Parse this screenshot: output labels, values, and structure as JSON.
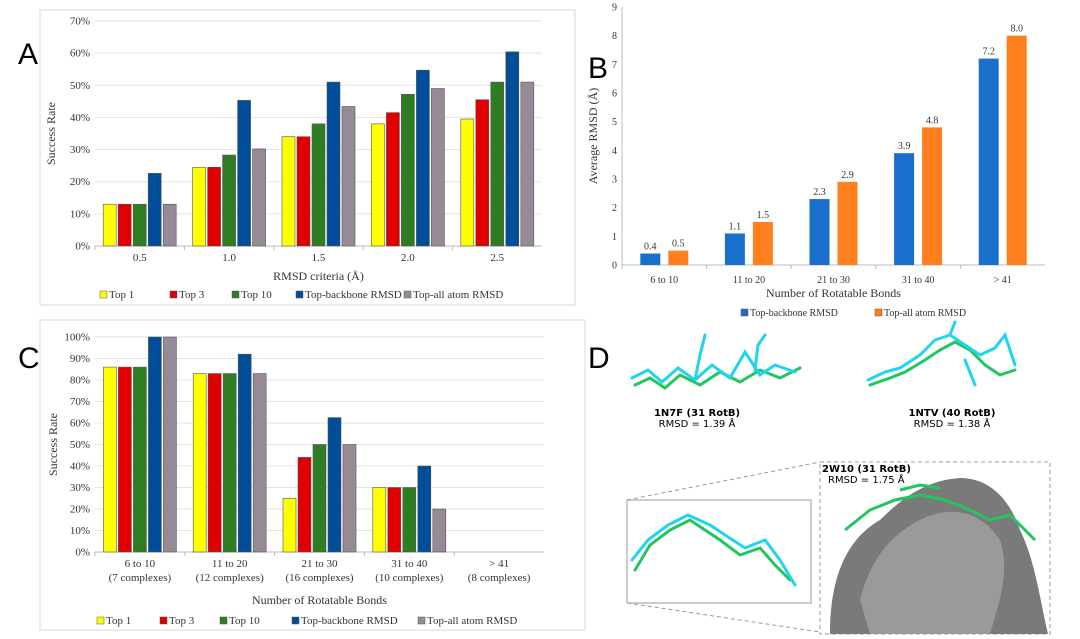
{
  "panels": {
    "a": "A",
    "b": "B",
    "c": "C",
    "d": "D"
  },
  "colors": {
    "top1": "#ffff00",
    "top3": "#e00000",
    "top10": "#2e7d23",
    "backbone": "#004d99",
    "allatom": "#968a96",
    "b_backbone": "#1a6fcc",
    "b_allatom": "#ff7f1e"
  },
  "chart_data": [
    {
      "id": "A",
      "type": "bar",
      "categories": [
        "0.5",
        "1.0",
        "1.5",
        "2.0",
        "2.5"
      ],
      "series": [
        {
          "name": "Top 1",
          "values": [
            13,
            24.5,
            34,
            38,
            39.5
          ]
        },
        {
          "name": "Top 3",
          "values": [
            13,
            24.5,
            34,
            41.5,
            45.5
          ]
        },
        {
          "name": "Top 10",
          "values": [
            13,
            28.3,
            38,
            47.2,
            51
          ]
        },
        {
          "name": "Top-backbone RMSD",
          "values": [
            22.6,
            45.3,
            51,
            54.7,
            60.4
          ]
        },
        {
          "name": "Top-all atom RMSD",
          "values": [
            13,
            30.2,
            43.4,
            49,
            51
          ]
        }
      ],
      "xlabel": "RMSD criteria (Å)",
      "ylabel": "Success Rate",
      "ylim": [
        0,
        70
      ],
      "yticks": [
        "0%",
        "10%",
        "20%",
        "30%",
        "40%",
        "50%",
        "60%",
        "70%"
      ],
      "grid": true,
      "legend": "bottom"
    },
    {
      "id": "B",
      "type": "bar",
      "categories": [
        "6 to 10",
        "11 to 20",
        "21 to 30",
        "31 to 40",
        "> 41"
      ],
      "series": [
        {
          "name": "Top-backbone RMSD",
          "values": [
            0.4,
            1.1,
            2.3,
            3.9,
            7.2
          ],
          "labels": [
            "0.4",
            "1.1",
            "2.3",
            "3.9",
            "7.2"
          ]
        },
        {
          "name": "Top-all atom RMSD",
          "values": [
            0.5,
            1.5,
            2.9,
            4.8,
            8.0
          ],
          "labels": [
            "0.5",
            "1.5",
            "2.9",
            "4.8",
            "8.0"
          ]
        }
      ],
      "xlabel": "Number of Rotatable Bonds",
      "ylabel": "Average RMSD (Å)",
      "ylim": [
        0,
        9
      ],
      "yticks": [
        "0",
        "1",
        "2",
        "3",
        "4",
        "5",
        "6",
        "7",
        "8",
        "9"
      ],
      "grid": false,
      "legend": "bottom"
    },
    {
      "id": "C",
      "type": "bar",
      "categories": [
        "6 to 10",
        "11 to 20",
        "21 to 30",
        "31 to 40",
        "> 41"
      ],
      "subcategories": [
        "(7 complexes)",
        "(12 complexes)",
        "(16 complexes)",
        "(10 complexes)",
        "(8 complexes)"
      ],
      "series": [
        {
          "name": "Top 1",
          "values": [
            86,
            83,
            25,
            30,
            0
          ]
        },
        {
          "name": "Top 3",
          "values": [
            86,
            83,
            44,
            30,
            0
          ]
        },
        {
          "name": "Top 10",
          "values": [
            86,
            83,
            50,
            30,
            0
          ]
        },
        {
          "name": "Top-backbone RMSD",
          "values": [
            100,
            92,
            62.5,
            40,
            0
          ]
        },
        {
          "name": "Top-all atom RMSD",
          "values": [
            100,
            83,
            50,
            20,
            0
          ]
        }
      ],
      "xlabel": "Number of Rotatable Bonds",
      "ylabel": "Success Rate",
      "ylim": [
        0,
        100
      ],
      "yticks": [
        "0%",
        "10%",
        "20%",
        "30%",
        "40%",
        "50%",
        "60%",
        "70%",
        "80%",
        "90%",
        "100%"
      ],
      "grid": true,
      "legend": "bottom"
    }
  ],
  "molecules": [
    {
      "name": "1N7F (31 RotB)",
      "rmsd": "RMSD = 1.39 Å"
    },
    {
      "name": "1NTV (40 RotB)",
      "rmsd": "RMSD = 1.38 Å"
    },
    {
      "name": "2W10 (31 RotB)",
      "rmsd": "RMSD = 1.75 Å"
    }
  ]
}
